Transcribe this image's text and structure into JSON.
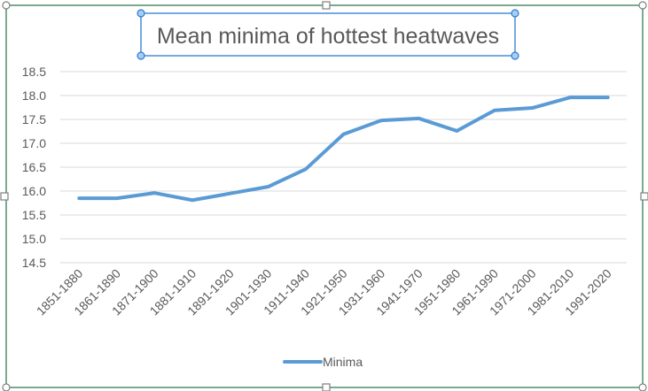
{
  "chart_data": {
    "type": "line",
    "title": "Mean minima of hottest heatwaves",
    "xlabel": "",
    "ylabel": "",
    "categories": [
      "1851-1880",
      "1861-1890",
      "1871-1900",
      "1881-1910",
      "1891-1920",
      "1901-1930",
      "1911-1940",
      "1921-1950",
      "1931-1960",
      "1941-1970",
      "1951-1980",
      "1961-1990",
      "1971-2000",
      "1981-2010",
      "1991-2020"
    ],
    "series": [
      {
        "name": "Minima",
        "color": "#5b9bd5",
        "values": [
          15.85,
          15.85,
          15.96,
          15.81,
          15.95,
          16.09,
          16.46,
          17.19,
          17.48,
          17.52,
          17.26,
          17.69,
          17.74,
          17.96,
          17.96
        ]
      }
    ],
    "ylim": [
      14.5,
      18.5
    ],
    "yticks": [
      "14.5",
      "15.0",
      "15.5",
      "16.0",
      "16.5",
      "17.0",
      "17.5",
      "18.0",
      "18.5"
    ],
    "grid": true,
    "legend": "bottom"
  }
}
